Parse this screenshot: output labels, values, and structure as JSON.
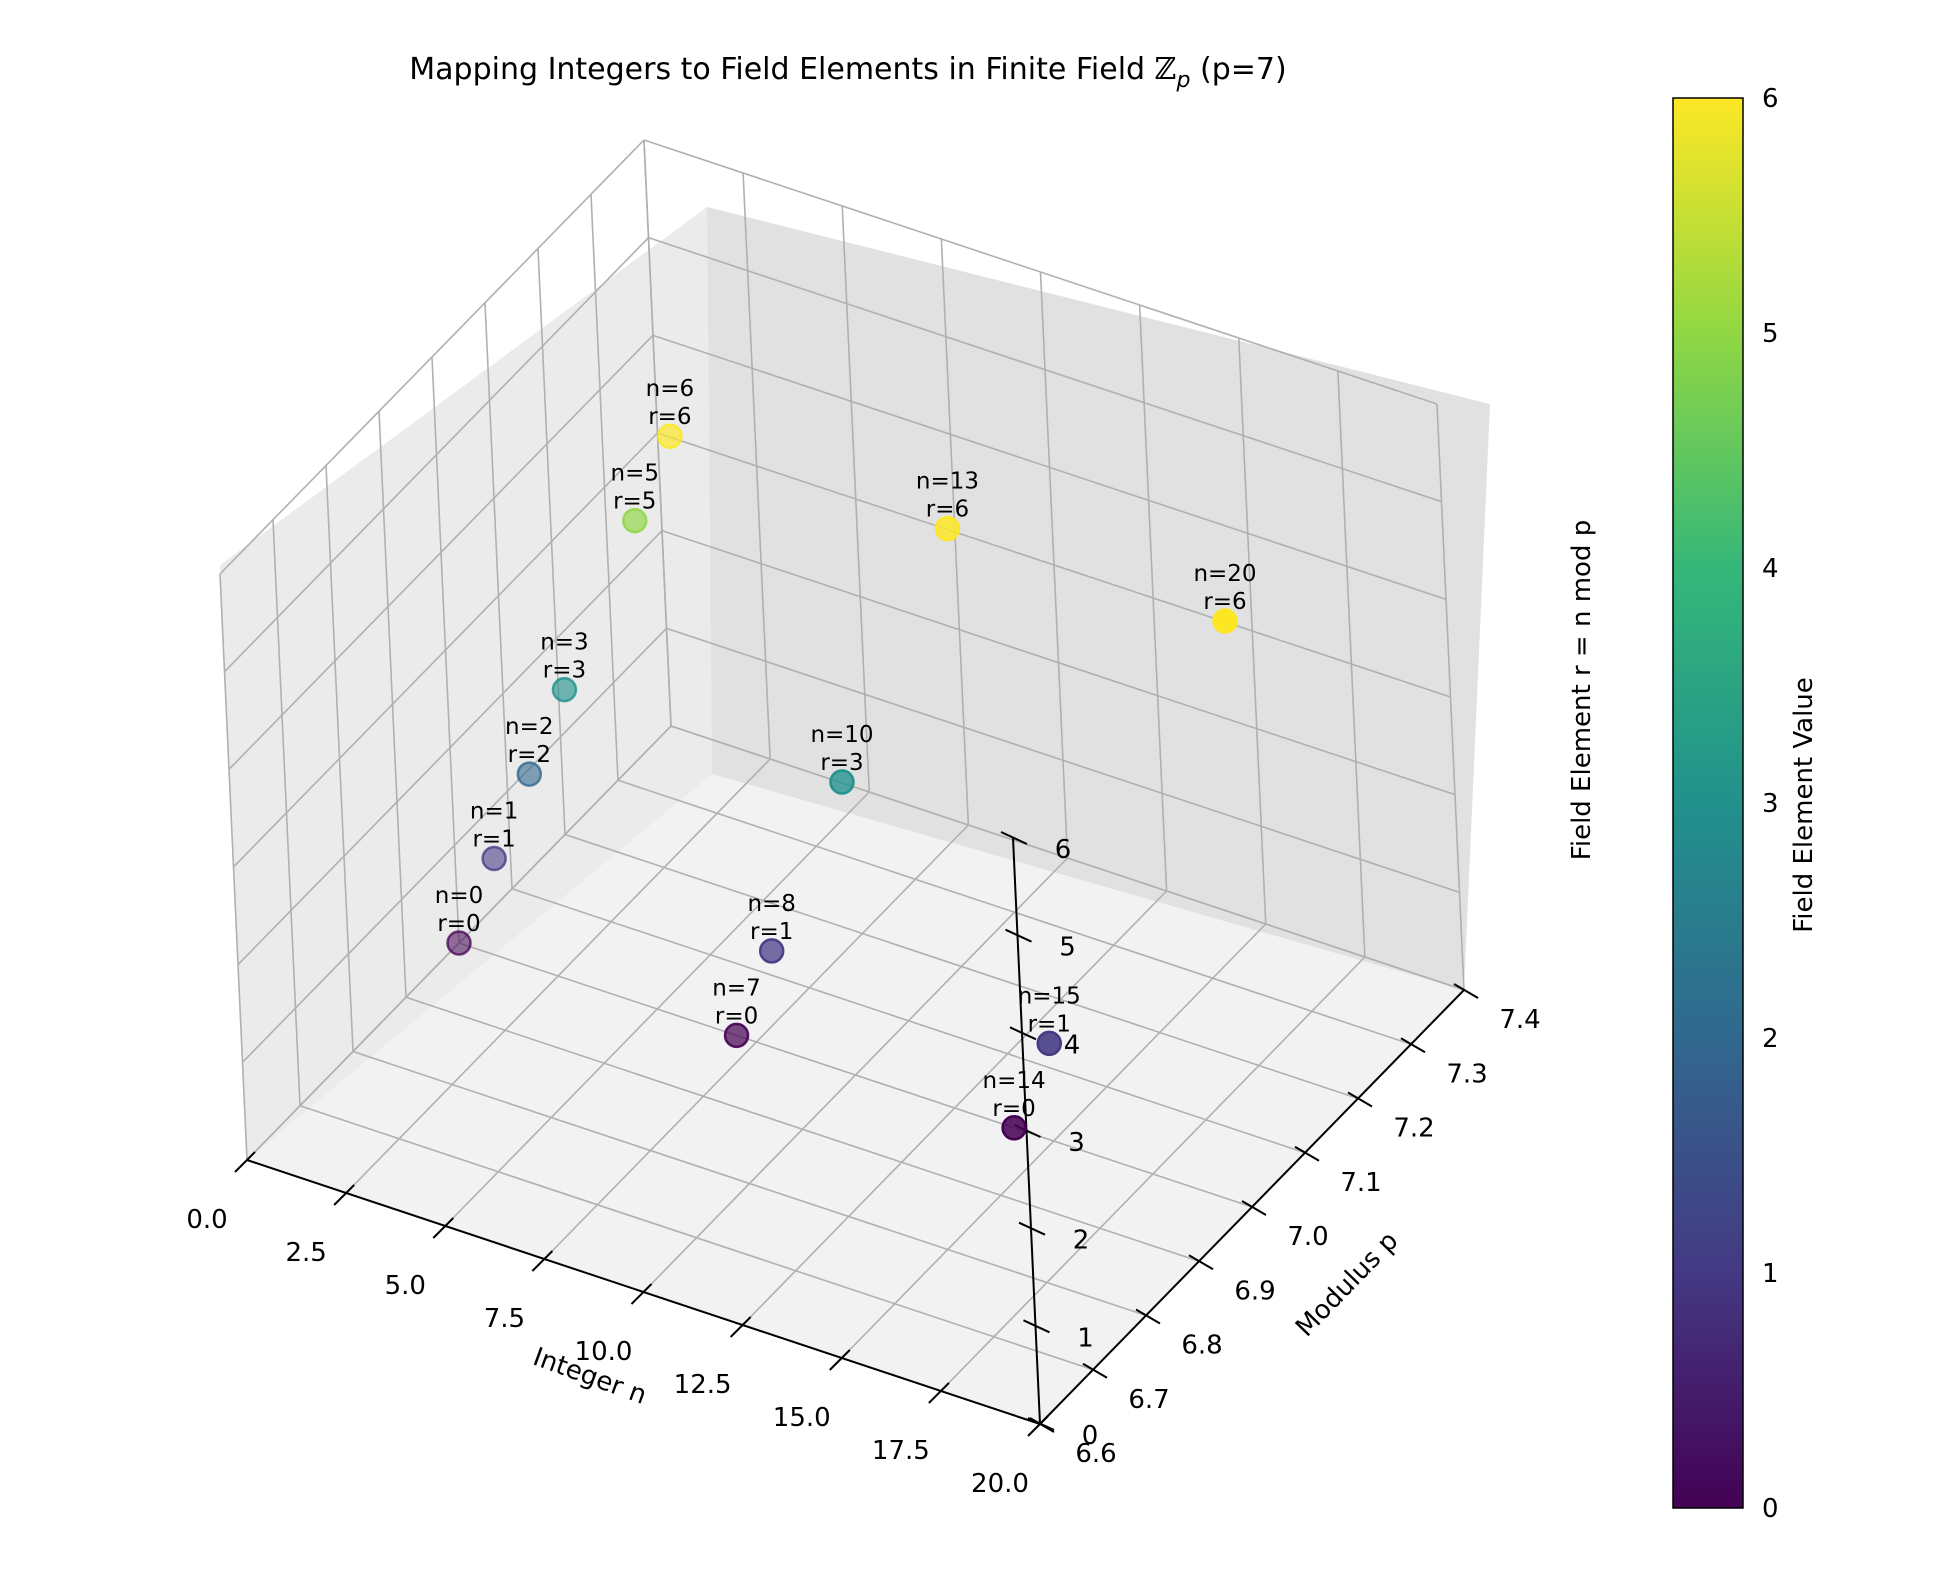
{
  "chart_data": {
    "type": "scatter",
    "title": "Mapping Integers to Field Elements in Finite Field ",
    "title_symbol": "ℤ",
    "title_subscript": "p",
    "title_suffix": " (p=7)",
    "xlabel": "Integer n",
    "ylabel": "Modulus p",
    "zlabel": "Field Element r = n mod p",
    "colorbar_label": "Field Element Value",
    "colormap": "viridis",
    "grid": true,
    "xlim": [
      0,
      20
    ],
    "ylim": [
      6.6,
      7.4
    ],
    "zlim": [
      0,
      6
    ],
    "x_ticks": [
      "0.0",
      "2.5",
      "5.0",
      "7.5",
      "10.0",
      "12.5",
      "15.0",
      "17.5",
      "20.0"
    ],
    "y_ticks": [
      "6.6",
      "6.7",
      "6.8",
      "6.9",
      "7.0",
      "7.1",
      "7.2",
      "7.3",
      "7.4"
    ],
    "z_ticks": [
      "0",
      "1",
      "2",
      "3",
      "4",
      "5",
      "6"
    ],
    "colorbar_ticks": [
      "0",
      "1",
      "2",
      "3",
      "4",
      "5",
      "6"
    ],
    "points": [
      {
        "n": 0,
        "p": 7,
        "r": 0,
        "label_n": "n=0",
        "label_r": "r=0"
      },
      {
        "n": 1,
        "p": 7,
        "r": 1,
        "label_n": "n=1",
        "label_r": "r=1"
      },
      {
        "n": 2,
        "p": 7,
        "r": 2,
        "label_n": "n=2",
        "label_r": "r=2"
      },
      {
        "n": 3,
        "p": 7,
        "r": 3,
        "label_n": "n=3",
        "label_r": "r=3"
      },
      {
        "n": 5,
        "p": 7,
        "r": 5,
        "label_n": "n=5",
        "label_r": "r=5"
      },
      {
        "n": 6,
        "p": 7,
        "r": 6,
        "label_n": "n=6",
        "label_r": "r=6"
      },
      {
        "n": 7,
        "p": 7,
        "r": 0,
        "label_n": "n=7",
        "label_r": "r=0"
      },
      {
        "n": 8,
        "p": 7,
        "r": 1,
        "label_n": "n=8",
        "label_r": "r=1"
      },
      {
        "n": 10,
        "p": 7,
        "r": 3,
        "label_n": "n=10",
        "label_r": "r=3"
      },
      {
        "n": 13,
        "p": 7,
        "r": 6,
        "label_n": "n=13",
        "label_r": "r=6"
      },
      {
        "n": 14,
        "p": 7,
        "r": 0,
        "label_n": "n=14",
        "label_r": "r=0"
      },
      {
        "n": 15,
        "p": 7,
        "r": 1,
        "label_n": "n=15",
        "label_r": "r=1"
      },
      {
        "n": 20,
        "p": 7,
        "r": 6,
        "label_n": "n=20",
        "label_r": "r=6"
      }
    ]
  }
}
